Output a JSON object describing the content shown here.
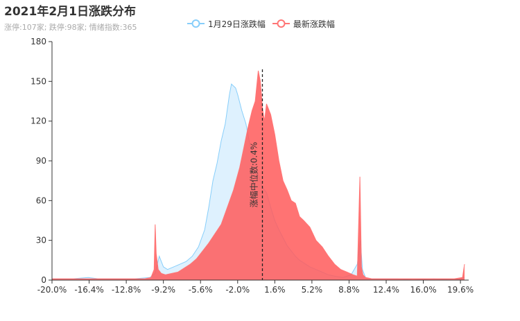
{
  "title": "2021年2月1日涨跌分布",
  "subtitle": "涨停:107家; 跌停:98家; 情绪指数:365",
  "chart_data": {
    "type": "area",
    "xlim": [
      -20.0,
      20.4
    ],
    "ylim": [
      0,
      180
    ],
    "y_ticks": [
      0,
      30,
      60,
      90,
      120,
      150,
      180
    ],
    "x_tick_labels": [
      "-20.0%",
      "-16.4%",
      "-12.8%",
      "-9.2%",
      "-5.6%",
      "-2.0%",
      "1.6%",
      "5.2%",
      "8.8%",
      "12.4%",
      "16.0%",
      "19.6%"
    ],
    "x_ticks": [
      -20.0,
      -16.4,
      -12.8,
      -9.2,
      -5.6,
      -2.0,
      1.6,
      5.2,
      8.8,
      12.4,
      16.0,
      19.6
    ],
    "median_line": {
      "x": 0.4,
      "label": "涨幅中位数:0.4%"
    },
    "series": [
      {
        "name": "1月29日涨跌幅",
        "color": "#87cefa",
        "x": [
          -20.0,
          -18.0,
          -16.5,
          -15.5,
          -14.0,
          -12.0,
          -10.5,
          -10.0,
          -9.6,
          -9.2,
          -8.8,
          -8.2,
          -7.6,
          -7.0,
          -6.4,
          -5.8,
          -5.2,
          -4.8,
          -4.4,
          -4.0,
          -3.6,
          -3.2,
          -2.8,
          -2.6,
          -2.2,
          -2.0,
          -1.6,
          -1.2,
          -0.8,
          -0.4,
          0.0,
          0.4,
          0.8,
          1.2,
          1.6,
          2.0,
          2.4,
          2.8,
          3.2,
          3.6,
          4.0,
          4.4,
          5.0,
          5.6,
          6.2,
          6.8,
          7.4,
          8.2,
          9.0,
          9.6,
          9.9,
          10.1,
          10.4,
          11.0,
          12.0,
          13.5,
          15.0,
          17.0,
          19.0,
          20.0
        ],
        "values": [
          1,
          1,
          2,
          1,
          1,
          1,
          2,
          5,
          18,
          10,
          8,
          10,
          12,
          14,
          18,
          25,
          38,
          55,
          75,
          88,
          105,
          118,
          140,
          148,
          145,
          140,
          128,
          118,
          102,
          90,
          80,
          70,
          66,
          55,
          45,
          38,
          32,
          26,
          22,
          18,
          15,
          13,
          10,
          8,
          6,
          4,
          3,
          2,
          4,
          12,
          30,
          8,
          2,
          1,
          1,
          1,
          0,
          1,
          0,
          2
        ]
      },
      {
        "name": "最新涨跌幅",
        "color": "#ff7575",
        "x": [
          -20.0,
          -17.0,
          -14.0,
          -11.0,
          -10.4,
          -10.1,
          -10.0,
          -9.9,
          -9.7,
          -9.4,
          -9.0,
          -8.4,
          -7.8,
          -7.2,
          -6.6,
          -6.0,
          -5.4,
          -4.8,
          -4.2,
          -3.6,
          -3.0,
          -2.4,
          -1.8,
          -1.4,
          -1.0,
          -0.6,
          -0.3,
          0.0,
          0.2,
          0.4,
          0.6,
          0.8,
          1.2,
          1.6,
          2.0,
          2.4,
          2.8,
          3.2,
          3.6,
          4.0,
          4.4,
          5.0,
          5.6,
          6.2,
          6.8,
          7.4,
          8.0,
          8.6,
          9.2,
          9.6,
          9.85,
          10.0,
          10.15,
          10.4,
          11.0,
          12.0,
          13.5,
          15.0,
          17.0,
          19.0,
          19.8,
          20.0
        ],
        "values": [
          1,
          1,
          1,
          1,
          2,
          8,
          42,
          20,
          8,
          5,
          4,
          5,
          6,
          9,
          12,
          16,
          22,
          28,
          35,
          42,
          55,
          68,
          85,
          100,
          115,
          128,
          135,
          158,
          150,
          130,
          120,
          133,
          125,
          110,
          90,
          75,
          68,
          60,
          58,
          48,
          45,
          40,
          30,
          25,
          18,
          12,
          8,
          6,
          4,
          3,
          78,
          10,
          4,
          2,
          1,
          1,
          1,
          1,
          1,
          1,
          2,
          12
        ]
      }
    ]
  }
}
